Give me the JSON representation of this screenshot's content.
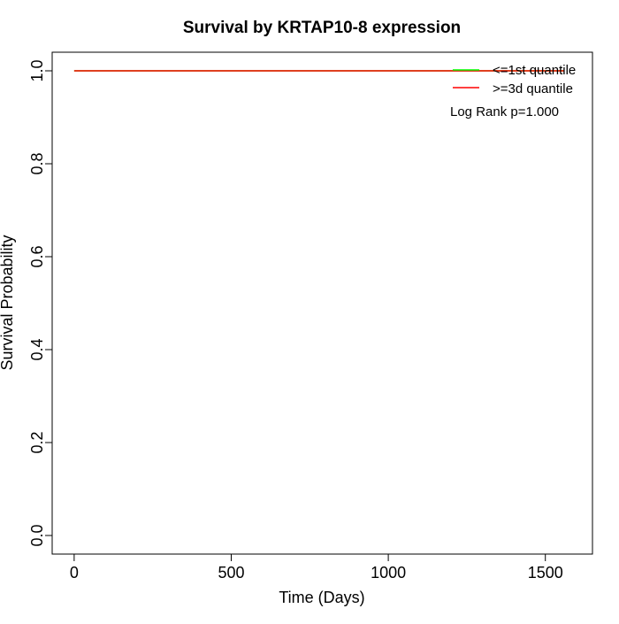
{
  "chart_data": {
    "type": "line",
    "title": "Survival by KRTAP10-8 expression",
    "xlabel": "Time (Days)",
    "ylabel": "Survival Probability",
    "xlim": [
      -70,
      1650
    ],
    "ylim": [
      -0.04,
      1.04
    ],
    "x_ticks": [
      0,
      500,
      1000,
      1500
    ],
    "x_tick_labels": [
      "0",
      "500",
      "1000",
      "1500"
    ],
    "y_ticks": [
      0.0,
      0.2,
      0.4,
      0.6,
      0.8,
      1.0
    ],
    "y_tick_labels": [
      "0.0",
      "0.2",
      "0.4",
      "0.6",
      "0.8",
      "1.0"
    ],
    "grid": false,
    "legend_position": "top-right",
    "series": [
      {
        "name": "<=1st quantile",
        "color": "#00ff00",
        "x": [
          0,
          1560
        ],
        "y": [
          1.0,
          1.0
        ]
      },
      {
        "name": ">=3d quantile",
        "color": "#ff0000",
        "x": [
          0,
          1560
        ],
        "y": [
          1.0,
          1.0
        ]
      }
    ],
    "annotations": [
      {
        "text": "Log Rank p=1.000"
      }
    ]
  }
}
